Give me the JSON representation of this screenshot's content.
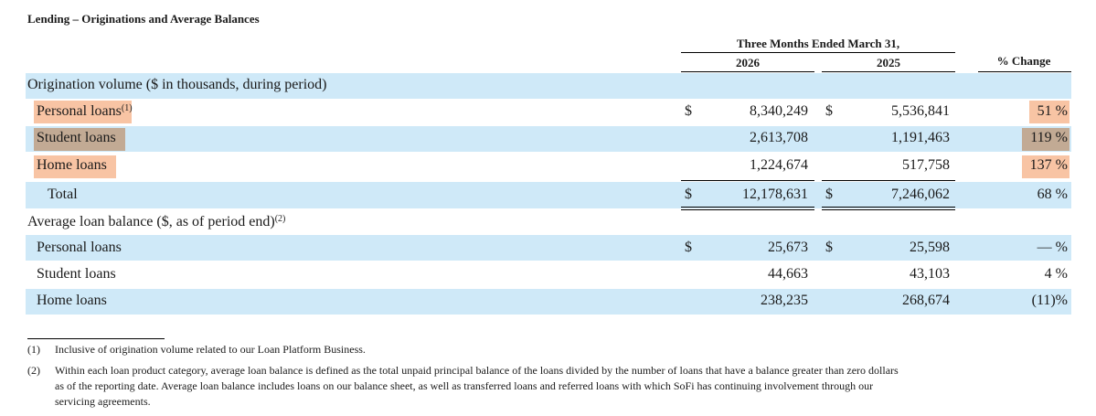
{
  "title": "Lending – Originations and Average Balances",
  "header": {
    "period": "Three Months Ended March 31,",
    "col_2026": "2026",
    "col_2025": "2025",
    "pct_change": "% Change"
  },
  "origination": {
    "section_label": "Origination volume ($ in thousands, during period)",
    "rows": [
      {
        "label": "Personal loans",
        "footnote": "(1)",
        "dollar": "$",
        "v2026": "8,340,249",
        "dollar2": "$",
        "v2025": "5,536,841",
        "change": "51 %"
      },
      {
        "label": "Student loans",
        "v2026": "2,613,708",
        "v2025": "1,191,463",
        "change": "119 %"
      },
      {
        "label": "Home loans",
        "v2026": "1,224,674",
        "v2025": "517,758",
        "change": "137 %"
      }
    ],
    "total": {
      "label": "Total",
      "dollar": "$",
      "v2026": "12,178,631",
      "dollar2": "$",
      "v2025": "7,246,062",
      "change": "68 %"
    }
  },
  "average": {
    "section_label": "Average loan balance ($, as of period end)",
    "section_footnote": "(2)",
    "rows": [
      {
        "label": "Personal loans",
        "dollar": "$",
        "v2026": "25,673",
        "dollar2": "$",
        "v2025": "25,598",
        "change": "— %"
      },
      {
        "label": "Student loans",
        "v2026": "44,663",
        "v2025": "43,103",
        "change": "4 %"
      },
      {
        "label": "Home loans",
        "v2026": "238,235",
        "v2025": "268,674",
        "change": "(11)%"
      }
    ]
  },
  "footnotes": [
    {
      "num": "(1)",
      "text": "Inclusive of origination volume related to our Loan Platform Business."
    },
    {
      "num": "(2)",
      "line1": "Within each loan product category, average loan balance is defined as the total unpaid principal balance of the loans divided by the number of loans that have a balance greater than zero dollars",
      "line2": "as of the reporting date. Average loan balance includes loans on our balance sheet, as well as transferred loans and referred loans with which SoFi has continuing involvement through our",
      "line3": "servicing agreements."
    }
  ],
  "colors": {
    "band": "#cfe9f8",
    "highlight_orange": "#f8c4a4",
    "highlight_tan": "#c2aa94"
  }
}
